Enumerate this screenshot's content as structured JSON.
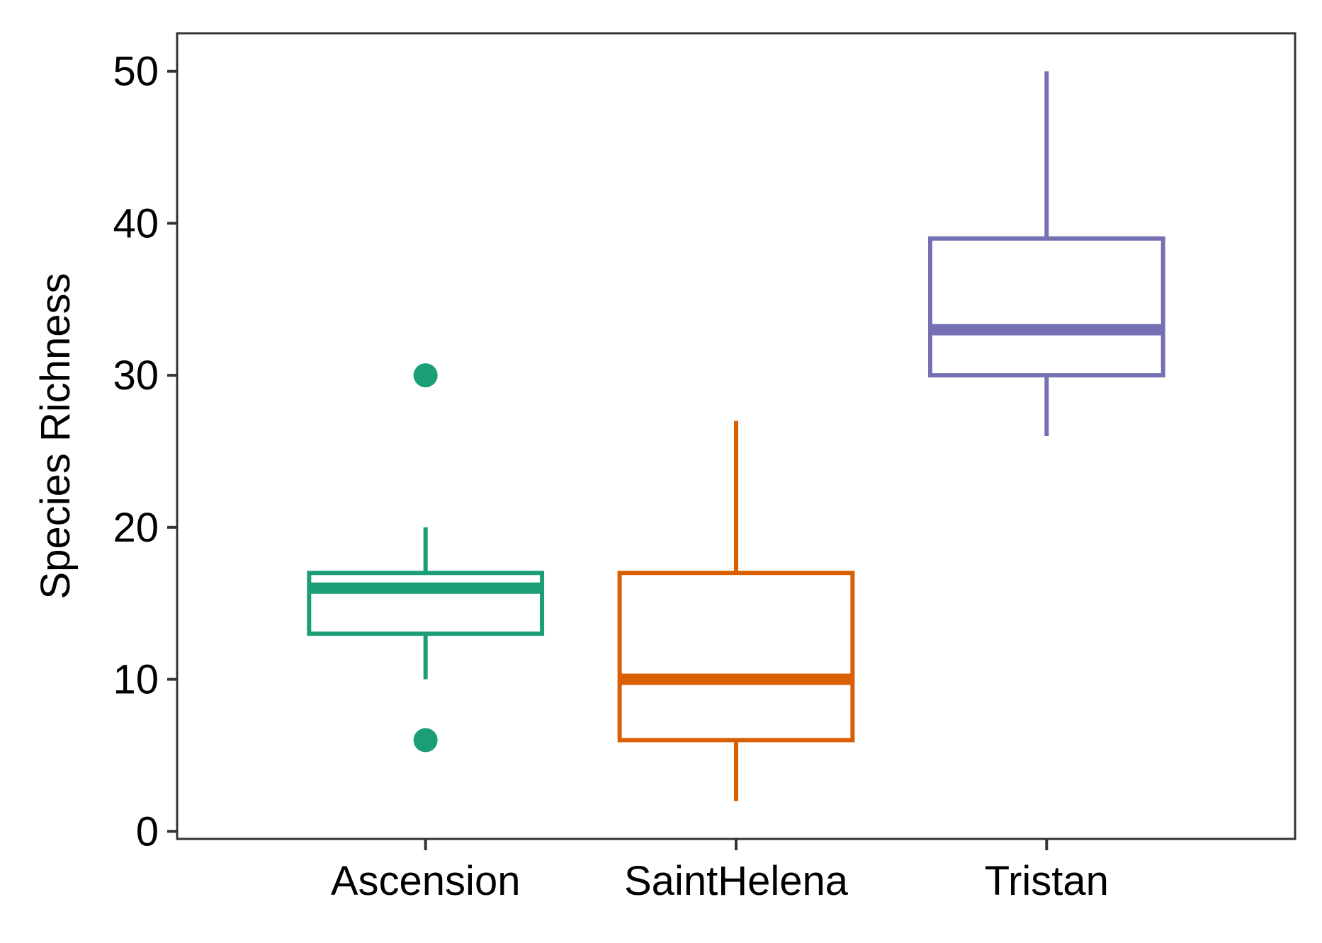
{
  "chart_data": {
    "type": "box",
    "title": "",
    "xlabel": "",
    "ylabel": "Species Richness",
    "ylim": [
      -0.5,
      52.5
    ],
    "yticks": [
      0,
      10,
      20,
      30,
      40,
      50
    ],
    "grid": false,
    "legend": "none",
    "categories": [
      "Ascension",
      "SaintHelena",
      "Tristan"
    ],
    "series": [
      {
        "category": "Ascension",
        "color": "#1b9e77",
        "whisker_low": 10,
        "q1": 13,
        "median": 16,
        "q3": 17,
        "whisker_high": 20,
        "outliers": [
          6,
          30
        ]
      },
      {
        "category": "SaintHelena",
        "color": "#d95f02",
        "whisker_low": 2,
        "q1": 6,
        "median": 10,
        "q3": 17,
        "whisker_high": 27,
        "outliers": []
      },
      {
        "category": "Tristan",
        "color": "#7570b3",
        "whisker_low": 26,
        "q1": 30,
        "median": 33,
        "q3": 39,
        "whisker_high": 50,
        "outliers": []
      }
    ]
  }
}
